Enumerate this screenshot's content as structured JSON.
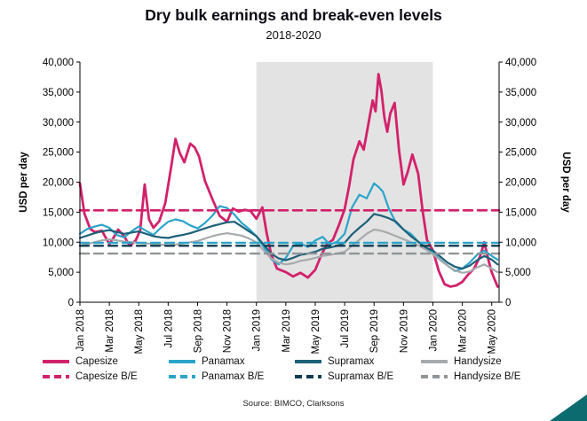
{
  "chart_data": {
    "type": "line",
    "title": "Dry bulk earnings and break-even levels",
    "subtitle": "2018-2020",
    "source": "Source: BIMCO, Clarksons",
    "ylabel_left": "USD per day",
    "ylabel_right": "USD per day",
    "ylim": [
      0,
      40000
    ],
    "ytick_step": 5000,
    "ytick_labels": [
      "0",
      "5,000",
      "10,000",
      "15,000",
      "20,000",
      "25,000",
      "30,000",
      "35,000",
      "40,000"
    ],
    "x_unit": "months since Jan 2018",
    "xlim": [
      0,
      28.5
    ],
    "xticks": [
      {
        "pos": 0,
        "label": "Jan 2018"
      },
      {
        "pos": 2,
        "label": "Mar 2018"
      },
      {
        "pos": 4,
        "label": "May 2018"
      },
      {
        "pos": 6,
        "label": "Jul 2018"
      },
      {
        "pos": 8,
        "label": "Sep 2018"
      },
      {
        "pos": 10,
        "label": "Nov 2018"
      },
      {
        "pos": 12,
        "label": "Jan 2019"
      },
      {
        "pos": 14,
        "label": "Mar 2019"
      },
      {
        "pos": 16,
        "label": "May 2019"
      },
      {
        "pos": 18,
        "label": "Jul 2019"
      },
      {
        "pos": 20,
        "label": "Sep 2019"
      },
      {
        "pos": 22,
        "label": "Nov 2019"
      },
      {
        "pos": 24,
        "label": "Jan 2020"
      },
      {
        "pos": 26,
        "label": "Mar 2020"
      },
      {
        "pos": 28,
        "label": "May 2020"
      }
    ],
    "grid": false,
    "legend_position": "bottom",
    "shaded_region": {
      "from": 12,
      "to": 24,
      "color": "#e3e3e3",
      "note": "Jan 2019 to Jan 2020"
    },
    "series": [
      {
        "name": "Capesize",
        "color": "#d2216b",
        "style": "solid",
        "width": 2.8,
        "points": [
          [
            0,
            19800
          ],
          [
            0.3,
            14800
          ],
          [
            0.7,
            12200
          ],
          [
            1,
            11700
          ],
          [
            1.5,
            11900
          ],
          [
            2,
            9700
          ],
          [
            2.3,
            10800
          ],
          [
            2.6,
            12100
          ],
          [
            3,
            11000
          ],
          [
            3.4,
            9400
          ],
          [
            3.8,
            10300
          ],
          [
            4.1,
            12000
          ],
          [
            4.4,
            19600
          ],
          [
            4.7,
            13800
          ],
          [
            5,
            12400
          ],
          [
            5.4,
            13500
          ],
          [
            5.8,
            16500
          ],
          [
            6.2,
            22500
          ],
          [
            6.5,
            27200
          ],
          [
            6.8,
            24800
          ],
          [
            7.1,
            23300
          ],
          [
            7.5,
            26400
          ],
          [
            7.8,
            25800
          ],
          [
            8.1,
            24300
          ],
          [
            8.5,
            20200
          ],
          [
            9,
            17200
          ],
          [
            9.5,
            14400
          ],
          [
            10,
            13400
          ],
          [
            10.4,
            15600
          ],
          [
            10.8,
            15100
          ],
          [
            11.2,
            15400
          ],
          [
            11.6,
            15200
          ],
          [
            12,
            13900
          ],
          [
            12.4,
            15800
          ],
          [
            12.7,
            11500
          ],
          [
            13,
            8000
          ],
          [
            13.4,
            5600
          ],
          [
            14,
            5000
          ],
          [
            14.5,
            4300
          ],
          [
            15,
            4900
          ],
          [
            15.5,
            4100
          ],
          [
            16,
            5400
          ],
          [
            16.4,
            7800
          ],
          [
            16.8,
            9700
          ],
          [
            17.2,
            10400
          ],
          [
            17.6,
            12800
          ],
          [
            18,
            15500
          ],
          [
            18.3,
            19300
          ],
          [
            18.6,
            23800
          ],
          [
            19,
            26800
          ],
          [
            19.3,
            25400
          ],
          [
            19.6,
            29500
          ],
          [
            19.9,
            33600
          ],
          [
            20.1,
            31800
          ],
          [
            20.3,
            38000
          ],
          [
            20.5,
            35200
          ],
          [
            20.7,
            30800
          ],
          [
            20.9,
            28400
          ],
          [
            21.1,
            31400
          ],
          [
            21.4,
            33200
          ],
          [
            21.7,
            25200
          ],
          [
            22,
            19600
          ],
          [
            22.3,
            21800
          ],
          [
            22.6,
            24600
          ],
          [
            23,
            21400
          ],
          [
            23.3,
            15200
          ],
          [
            23.6,
            10400
          ],
          [
            24,
            8600
          ],
          [
            24.4,
            5200
          ],
          [
            24.8,
            3000
          ],
          [
            25.2,
            2600
          ],
          [
            25.6,
            2800
          ],
          [
            26,
            3400
          ],
          [
            26.4,
            4600
          ],
          [
            26.8,
            5600
          ],
          [
            27.2,
            7600
          ],
          [
            27.5,
            10000
          ],
          [
            27.8,
            6800
          ],
          [
            28,
            5000
          ],
          [
            28.2,
            3800
          ],
          [
            28.4,
            2600
          ]
        ]
      },
      {
        "name": "Panamax",
        "color": "#2aa4cb",
        "style": "solid",
        "width": 2.2,
        "points": [
          [
            0,
            11400
          ],
          [
            0.5,
            12200
          ],
          [
            1,
            12600
          ],
          [
            1.5,
            12900
          ],
          [
            2,
            12400
          ],
          [
            2.5,
            11200
          ],
          [
            3,
            10800
          ],
          [
            3.5,
            11800
          ],
          [
            4,
            12600
          ],
          [
            4.5,
            11900
          ],
          [
            5,
            11200
          ],
          [
            5.5,
            12400
          ],
          [
            6,
            13400
          ],
          [
            6.5,
            13800
          ],
          [
            7,
            13500
          ],
          [
            7.5,
            12800
          ],
          [
            8,
            12300
          ],
          [
            8.5,
            13200
          ],
          [
            9,
            14400
          ],
          [
            9.5,
            16000
          ],
          [
            10,
            15700
          ],
          [
            10.5,
            14600
          ],
          [
            11,
            13200
          ],
          [
            11.5,
            12200
          ],
          [
            12,
            11000
          ],
          [
            12.5,
            9200
          ],
          [
            13,
            7200
          ],
          [
            13.5,
            6300
          ],
          [
            14,
            7400
          ],
          [
            14.5,
            9400
          ],
          [
            15,
            9800
          ],
          [
            15.5,
            9200
          ],
          [
            16,
            10300
          ],
          [
            16.5,
            10900
          ],
          [
            17,
            9600
          ],
          [
            17.5,
            10100
          ],
          [
            18,
            11400
          ],
          [
            18.5,
            15800
          ],
          [
            19,
            17900
          ],
          [
            19.5,
            17300
          ],
          [
            20,
            19800
          ],
          [
            20.3,
            19200
          ],
          [
            20.6,
            18400
          ],
          [
            21,
            15600
          ],
          [
            21.5,
            13200
          ],
          [
            22,
            12100
          ],
          [
            22.5,
            11400
          ],
          [
            23,
            10100
          ],
          [
            23.5,
            9100
          ],
          [
            24,
            8200
          ],
          [
            24.5,
            7100
          ],
          [
            25,
            6100
          ],
          [
            25.5,
            5200
          ],
          [
            26,
            5600
          ],
          [
            26.5,
            6600
          ],
          [
            27,
            7900
          ],
          [
            27.5,
            8600
          ],
          [
            28,
            7700
          ],
          [
            28.4,
            7100
          ]
        ]
      },
      {
        "name": "Supramax",
        "color": "#1d6078",
        "style": "solid",
        "width": 2.2,
        "points": [
          [
            0,
            10700
          ],
          [
            0.5,
            11100
          ],
          [
            1,
            11500
          ],
          [
            1.5,
            11800
          ],
          [
            2,
            12000
          ],
          [
            2.5,
            11700
          ],
          [
            3,
            11400
          ],
          [
            3.5,
            11600
          ],
          [
            4,
            11800
          ],
          [
            4.5,
            11400
          ],
          [
            5,
            11000
          ],
          [
            5.5,
            10800
          ],
          [
            6,
            10700
          ],
          [
            6.5,
            11000
          ],
          [
            7,
            11200
          ],
          [
            7.5,
            11500
          ],
          [
            8,
            11900
          ],
          [
            8.5,
            12300
          ],
          [
            9,
            12700
          ],
          [
            9.5,
            13000
          ],
          [
            10,
            13300
          ],
          [
            10.5,
            13400
          ],
          [
            11,
            12600
          ],
          [
            11.5,
            11800
          ],
          [
            12,
            11000
          ],
          [
            12.5,
            9600
          ],
          [
            13,
            8100
          ],
          [
            13.5,
            7300
          ],
          [
            14,
            7000
          ],
          [
            14.5,
            7400
          ],
          [
            15,
            7900
          ],
          [
            15.5,
            8100
          ],
          [
            16,
            8400
          ],
          [
            16.5,
            8900
          ],
          [
            17,
            9100
          ],
          [
            17.5,
            9400
          ],
          [
            18,
            9900
          ],
          [
            18.5,
            11300
          ],
          [
            19,
            12400
          ],
          [
            19.5,
            13400
          ],
          [
            20,
            14700
          ],
          [
            20.5,
            14400
          ],
          [
            21,
            14000
          ],
          [
            21.5,
            13400
          ],
          [
            22,
            12100
          ],
          [
            22.5,
            11000
          ],
          [
            23,
            10100
          ],
          [
            23.5,
            9100
          ],
          [
            24,
            8600
          ],
          [
            24.5,
            7600
          ],
          [
            25,
            6600
          ],
          [
            25.5,
            5900
          ],
          [
            26,
            5600
          ],
          [
            26.5,
            6100
          ],
          [
            27,
            7000
          ],
          [
            27.5,
            7700
          ],
          [
            28,
            7100
          ],
          [
            28.4,
            6300
          ]
        ]
      },
      {
        "name": "Handysize",
        "color": "#a7aaac",
        "style": "solid",
        "width": 2.2,
        "points": [
          [
            0,
            9400
          ],
          [
            0.5,
            9700
          ],
          [
            1,
            10000
          ],
          [
            1.5,
            10300
          ],
          [
            2,
            10500
          ],
          [
            2.5,
            10300
          ],
          [
            3,
            10100
          ],
          [
            3.5,
            10000
          ],
          [
            4,
            9900
          ],
          [
            4.5,
            9800
          ],
          [
            5,
            9700
          ],
          [
            5.5,
            9600
          ],
          [
            6,
            9500
          ],
          [
            6.5,
            9600
          ],
          [
            7,
            9800
          ],
          [
            7.5,
            10000
          ],
          [
            8,
            10200
          ],
          [
            8.5,
            10600
          ],
          [
            9,
            11000
          ],
          [
            9.5,
            11300
          ],
          [
            10,
            11500
          ],
          [
            10.5,
            11300
          ],
          [
            11,
            11100
          ],
          [
            11.5,
            10600
          ],
          [
            12,
            10000
          ],
          [
            12.5,
            8600
          ],
          [
            13,
            7300
          ],
          [
            13.5,
            6600
          ],
          [
            14,
            6300
          ],
          [
            14.5,
            6500
          ],
          [
            15,
            6900
          ],
          [
            15.5,
            7100
          ],
          [
            16,
            7400
          ],
          [
            16.5,
            7700
          ],
          [
            17,
            7900
          ],
          [
            17.5,
            8100
          ],
          [
            18,
            8400
          ],
          [
            18.5,
            9400
          ],
          [
            19,
            10400
          ],
          [
            19.5,
            11400
          ],
          [
            20,
            12100
          ],
          [
            20.5,
            11900
          ],
          [
            21,
            11500
          ],
          [
            21.5,
            11000
          ],
          [
            22,
            10500
          ],
          [
            22.5,
            10000
          ],
          [
            23,
            9500
          ],
          [
            23.5,
            8800
          ],
          [
            24,
            8000
          ],
          [
            24.5,
            7000
          ],
          [
            25,
            6100
          ],
          [
            25.5,
            5300
          ],
          [
            26,
            4900
          ],
          [
            26.5,
            5100
          ],
          [
            27,
            5800
          ],
          [
            27.5,
            6300
          ],
          [
            28,
            5600
          ],
          [
            28.4,
            5000
          ]
        ]
      },
      {
        "name": "Capesize B/E",
        "color": "#d2216b",
        "style": "dashed",
        "width": 2.6,
        "value": 15300
      },
      {
        "name": "Panamax B/E",
        "color": "#2aa4cb",
        "style": "dashed",
        "width": 2.4,
        "value": 9900
      },
      {
        "name": "Supramax B/E",
        "color": "#123c50",
        "style": "dashed",
        "width": 2.4,
        "value": 9400
      },
      {
        "name": "Handysize B/E",
        "color": "#8f9496",
        "style": "dashed",
        "width": 2.4,
        "value": 8100
      }
    ]
  },
  "legend": {
    "items": [
      {
        "label": "Capesize",
        "series": "Capesize"
      },
      {
        "label": "Panamax",
        "series": "Panamax"
      },
      {
        "label": "Supramax",
        "series": "Supramax"
      },
      {
        "label": "Handysize",
        "series": "Handysize"
      },
      {
        "label": "Capesize B/E",
        "series": "Capesize B/E"
      },
      {
        "label": "Panamax B/E",
        "series": "Panamax B/E"
      },
      {
        "label": "Supramax B/E",
        "series": "Supramax B/E"
      },
      {
        "label": "Handysize B/E",
        "series": "Handysize B/E"
      }
    ]
  },
  "decor": {
    "corner_color": "#0c6b6f"
  }
}
